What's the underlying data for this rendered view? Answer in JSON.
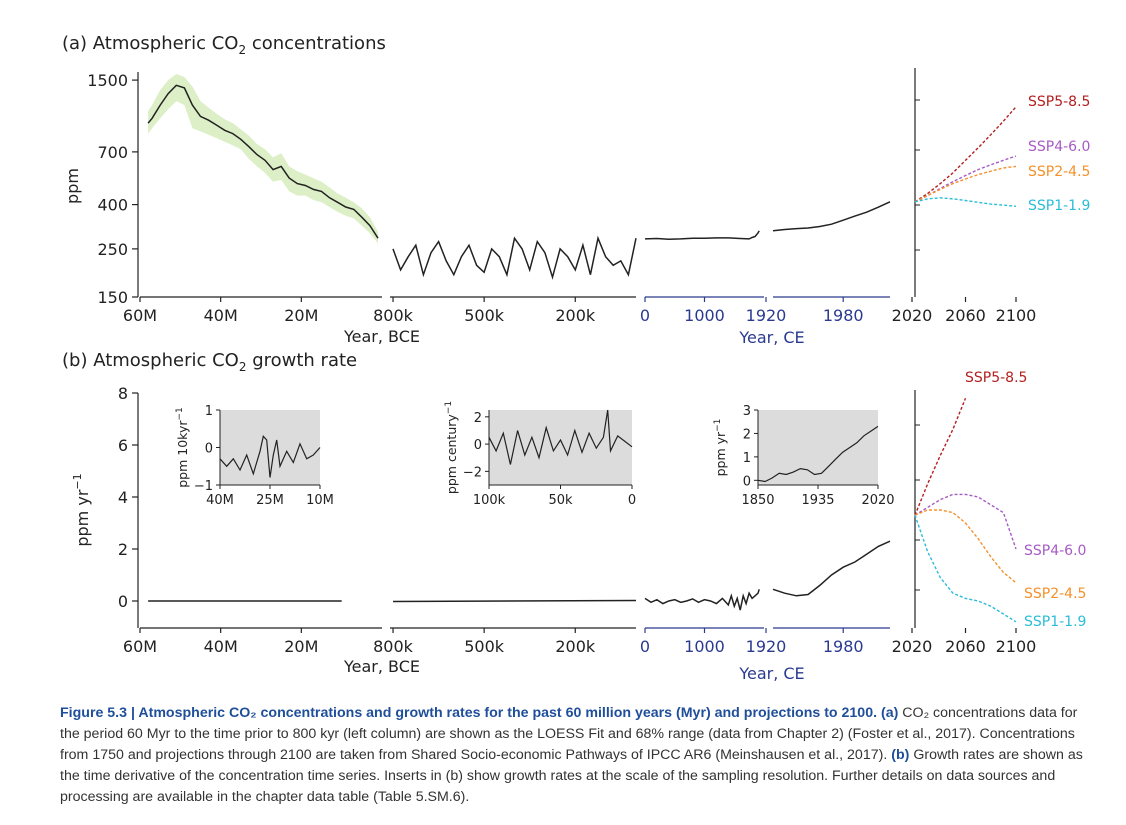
{
  "colors": {
    "axis": "#222222",
    "ce_axis": "#2b3a8f",
    "shade": "#dcefc6",
    "inset_bg": "#dcdcdc",
    "line": "#222222",
    "ssp5": "#b41f1f",
    "ssp4": "#a75bc4",
    "ssp2": "#f5902a",
    "ssp1": "#2bbcd8",
    "caption_head": "#1f4e9a"
  },
  "panel_a": {
    "title_pre": "(a) Atmospheric CO",
    "title_sub": "2",
    "title_post": " concentrations",
    "ylabel": "ppm",
    "yticks": [
      "1500",
      "700",
      "400",
      "250",
      "150"
    ],
    "xlabel_left": "Year, BCE",
    "xlabel_right": "Year, CE"
  },
  "panel_b": {
    "title_pre": "(b) Atmospheric CO",
    "title_sub": "2",
    "title_post": " growth rate",
    "ylabel_base": "ppm yr",
    "ylabel_exp": "−1",
    "yticks": [
      "8",
      "6",
      "4",
      "2",
      "0"
    ],
    "xlabel_left": "Year, BCE",
    "xlabel_right": "Year, CE"
  },
  "x_ticks": {
    "myr": [
      "60M",
      "40M",
      "20M"
    ],
    "kyr": [
      "800k",
      "500k",
      "200k"
    ],
    "ce_hist": [
      "0",
      "1000"
    ],
    "ce_modern": [
      "1920",
      "1980"
    ],
    "proj": [
      "2020",
      "2060",
      "2100"
    ]
  },
  "insets": {
    "myr": {
      "ylabel_base": "ppm 10kyr",
      "ylabel_exp": "−1",
      "yticks": [
        "1",
        "0",
        "−1"
      ],
      "xticks": [
        "40M",
        "25M",
        "10M"
      ]
    },
    "kyr": {
      "ylabel_base": "ppm century",
      "ylabel_exp": "−1",
      "yticks": [
        "2",
        "0",
        "−2"
      ],
      "xticks": [
        "100k",
        "50k",
        "0"
      ]
    },
    "ce": {
      "ylabel_base": "ppm yr",
      "ylabel_exp": "−1",
      "yticks": [
        "3",
        "2",
        "1",
        "0"
      ],
      "xticks": [
        "1850",
        "1935",
        "2020"
      ]
    }
  },
  "caption": {
    "lead": "Figure 5.3 | Atmospheric CO₂ concentrations and growth rates for the past 60 million years (Myr) and projections to 2100.",
    "tag_a": "(a)",
    "text_a": "CO₂ concentrations data for the period 60 Myr to the time prior to 800 kyr (left column) are shown as the LOESS Fit and 68% range (data from Chapter 2) (Foster et al., 2017). Concentrations from 1750 and projections through 2100 are taken from Shared Socio-economic Pathways of IPCC AR6 (Meinshausen et al., 2017).",
    "tag_b": "(b)",
    "text_b": "Growth rates are shown as the time derivative of the concentration time series. Inserts in (b) show growth rates at the scale of the sampling resolution. Further details on data sources and processing are available in the chapter data table (Table 5.SM.6)."
  },
  "chart_data": [
    {
      "type": "line",
      "panel": "a",
      "y_scale": "log",
      "ylim": [
        150,
        1700
      ],
      "segments": [
        {
          "x_unit": "years before present",
          "xlim": [
            60000000,
            0
          ],
          "x": [
            58000000,
            57000000,
            55000000,
            53000000,
            51000000,
            49000000,
            47000000,
            45000000,
            43000000,
            41000000,
            39000000,
            37000000,
            35000000,
            33000000,
            31000000,
            29000000,
            27000000,
            25000000,
            23000000,
            21000000,
            19000000,
            17000000,
            15000000,
            13000000,
            11000000,
            9000000,
            7000000,
            5000000,
            3000000,
            1000000
          ],
          "y": [
            950,
            1000,
            1150,
            1300,
            1420,
            1380,
            1150,
            1020,
            980,
            930,
            880,
            850,
            800,
            740,
            680,
            640,
            580,
            600,
            530,
            500,
            490,
            470,
            460,
            430,
            410,
            390,
            380,
            350,
            320,
            280
          ],
          "range_low": [
            850,
            900,
            1000,
            1100,
            1200,
            1150,
            900,
            870,
            840,
            810,
            780,
            750,
            720,
            650,
            600,
            560,
            510,
            520,
            460,
            440,
            440,
            420,
            410,
            390,
            370,
            355,
            345,
            320,
            295,
            265
          ],
          "range_high": [
            1080,
            1150,
            1350,
            1500,
            1600,
            1550,
            1400,
            1200,
            1120,
            1050,
            990,
            950,
            890,
            830,
            760,
            720,
            660,
            690,
            600,
            570,
            550,
            530,
            510,
            480,
            450,
            430,
            410,
            385,
            350,
            300
          ]
        },
        {
          "x_unit": "years before present",
          "xlim": [
            810000,
            0
          ],
          "x": [
            800000,
            775000,
            750000,
            725000,
            700000,
            675000,
            650000,
            625000,
            600000,
            575000,
            550000,
            525000,
            500000,
            475000,
            450000,
            425000,
            400000,
            375000,
            350000,
            325000,
            300000,
            275000,
            250000,
            225000,
            200000,
            175000,
            150000,
            125000,
            100000,
            75000,
            50000,
            25000,
            0
          ],
          "y": [
            250,
            200,
            230,
            260,
            190,
            240,
            270,
            220,
            190,
            230,
            260,
            210,
            195,
            250,
            230,
            190,
            280,
            250,
            200,
            270,
            240,
            185,
            250,
            230,
            200,
            260,
            190,
            280,
            230,
            210,
            220,
            190,
            280
          ]
        },
        {
          "x_unit": "year CE",
          "xlim": [
            0,
            2000
          ],
          "x": [
            0,
            200,
            400,
            600,
            800,
            1000,
            1200,
            1400,
            1600,
            1750,
            1800,
            1850,
            1900,
            1920
          ],
          "y": [
            278,
            279,
            277,
            278,
            280,
            280,
            281,
            281,
            279,
            278,
            282,
            285,
            296,
            303
          ]
        },
        {
          "x_unit": "year CE",
          "xlim": [
            1920,
            2020
          ],
          "x": [
            1920,
            1930,
            1940,
            1950,
            1960,
            1970,
            1980,
            1990,
            2000,
            2010,
            2020
          ],
          "y": [
            303,
            307,
            310,
            312,
            317,
            325,
            339,
            354,
            369,
            389,
            412
          ]
        }
      ],
      "projections": {
        "x": [
          2020,
          2030,
          2040,
          2050,
          2060,
          2070,
          2080,
          2090,
          2100
        ],
        "series": [
          {
            "name": "SSP5-8.5",
            "color": "#b41f1f",
            "y": [
              412,
              450,
              500,
              560,
              640,
              730,
              840,
              970,
              1130
            ]
          },
          {
            "name": "SSP4-6.0",
            "color": "#a75bc4",
            "y": [
              412,
              440,
              475,
              510,
              545,
              580,
              610,
              640,
              670
            ]
          },
          {
            "name": "SSP2-4.5",
            "color": "#f5902a",
            "y": [
              412,
              440,
              470,
              500,
              525,
              550,
              570,
              590,
              600
            ]
          },
          {
            "name": "SSP1-1.9",
            "color": "#2bbcd8",
            "y": [
              412,
              425,
              430,
              425,
              418,
              410,
              402,
              398,
              393
            ]
          }
        ]
      }
    },
    {
      "type": "line",
      "panel": "b",
      "ylim": [
        -1,
        8
      ],
      "segments": [
        {
          "x_unit": "years before present",
          "xlim": [
            60000000,
            0
          ],
          "x": [
            58000000,
            10000000
          ],
          "y": [
            0,
            0
          ]
        },
        {
          "x_unit": "years before present",
          "xlim": [
            810000,
            0
          ],
          "x": [
            800000,
            0
          ],
          "y": [
            -0.02,
            0.02
          ]
        },
        {
          "x_unit": "year CE",
          "xlim": [
            0,
            2000
          ],
          "x": [
            0,
            100,
            200,
            300,
            400,
            500,
            600,
            700,
            800,
            900,
            1000,
            1100,
            1200,
            1300,
            1400,
            1450,
            1500,
            1550,
            1600,
            1650,
            1700,
            1750,
            1800,
            1850,
            1900,
            1920
          ],
          "y": [
            0.1,
            -0.05,
            0.05,
            -0.1,
            0,
            0.05,
            -0.05,
            0,
            0.08,
            -0.05,
            0.05,
            0,
            -0.1,
            0.1,
            -0.15,
            0.2,
            -0.2,
            0.1,
            -0.35,
            0.2,
            -0.1,
            0.3,
            0.1,
            0.2,
            0.3,
            0.45
          ]
        },
        {
          "x_unit": "year CE",
          "xlim": [
            1920,
            2020
          ],
          "x": [
            1920,
            1930,
            1940,
            1950,
            1960,
            1970,
            1980,
            1990,
            2000,
            2010,
            2020
          ],
          "y": [
            0.45,
            0.3,
            0.2,
            0.25,
            0.6,
            1.0,
            1.3,
            1.5,
            1.8,
            2.1,
            2.3
          ]
        }
      ],
      "projections": {
        "x": [
          2020,
          2030,
          2040,
          2050,
          2060,
          2070,
          2080,
          2090,
          2100
        ],
        "series": [
          {
            "name": "SSP5-8.5",
            "color": "#b41f1f",
            "y": [
              3.3,
              4.5,
              5.6,
              6.6,
              7.8
            ]
          },
          {
            "name": "SSP4-6.0",
            "color": "#a75bc4",
            "y": [
              3.3,
              3.6,
              3.9,
              4.1,
              4.1,
              4.0,
              3.7,
              3.4,
              2.0
            ]
          },
          {
            "name": "SSP2-4.5",
            "color": "#f5902a",
            "y": [
              3.3,
              3.5,
              3.5,
              3.4,
              3.0,
              2.4,
              1.7,
              1.1,
              0.7
            ]
          },
          {
            "name": "SSP1-1.9",
            "color": "#2bbcd8",
            "y": [
              3.3,
              1.9,
              0.9,
              0.3,
              0.1,
              0.0,
              -0.2,
              -0.5,
              -0.8
            ]
          }
        ]
      },
      "insets": [
        {
          "x_unit": "years before present",
          "xlim": [
            40000000,
            10000000
          ],
          "ylim": [
            -1,
            1
          ],
          "x": [
            40000000,
            38000000,
            36000000,
            34000000,
            32000000,
            30000000,
            28000000,
            27000000,
            26000000,
            25000000,
            24000000,
            23000000,
            22000000,
            20000000,
            18000000,
            16000000,
            14000000,
            12000000,
            10000000
          ],
          "y": [
            -0.3,
            -0.5,
            -0.3,
            -0.6,
            -0.2,
            -0.7,
            -0.1,
            0.3,
            0.2,
            -0.8,
            -0.2,
            0.2,
            -0.5,
            -0.1,
            -0.4,
            0.1,
            -0.3,
            -0.2,
            0.0
          ]
        },
        {
          "x_unit": "years before present",
          "xlim": [
            100000,
            0
          ],
          "ylim": [
            -3,
            2.5
          ],
          "x": [
            100000,
            95000,
            90000,
            85000,
            80000,
            75000,
            70000,
            65000,
            60000,
            55000,
            50000,
            45000,
            40000,
            35000,
            30000,
            25000,
            20000,
            17000,
            15000,
            10000,
            5000,
            0
          ],
          "y": [
            0.5,
            -0.5,
            0.8,
            -1.5,
            1.0,
            -0.8,
            0.5,
            -1.0,
            1.2,
            -0.5,
            0.3,
            -0.8,
            1.0,
            -0.6,
            0.8,
            -0.3,
            0.5,
            2.5,
            -0.5,
            0.6,
            0.2,
            -0.2
          ]
        },
        {
          "x_unit": "year CE",
          "xlim": [
            1850,
            2020
          ],
          "ylim": [
            -0.2,
            3
          ],
          "x": [
            1850,
            1860,
            1870,
            1880,
            1890,
            1900,
            1910,
            1920,
            1930,
            1940,
            1950,
            1960,
            1970,
            1980,
            1990,
            2000,
            2010,
            2020
          ],
          "y": [
            0,
            -0.05,
            0.1,
            0.3,
            0.25,
            0.35,
            0.5,
            0.45,
            0.25,
            0.3,
            0.6,
            0.9,
            1.2,
            1.4,
            1.6,
            1.9,
            2.1,
            2.3
          ]
        }
      ]
    }
  ]
}
